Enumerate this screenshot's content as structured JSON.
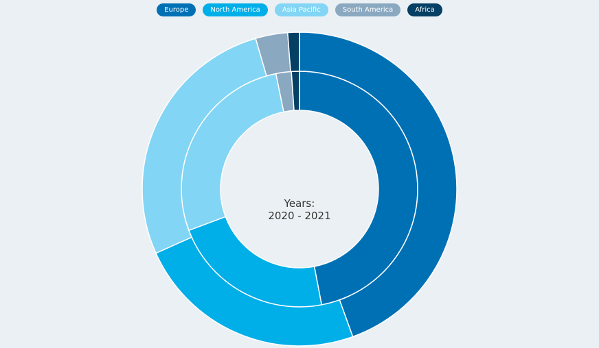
{
  "chart_data": {
    "type": "pie",
    "subtype": "nested-donut",
    "center_label": {
      "line1": "Years:",
      "line2": "2020 - 2021"
    },
    "categories": [
      "Europe",
      "North America",
      "Asia Pacific",
      "South America",
      "Africa"
    ],
    "colors": [
      "#0070b5",
      "#00aee8",
      "#82d5f4",
      "#8aa8c0",
      "#053f63"
    ],
    "series": [
      {
        "ring": "inner",
        "values": [
          47.0,
          22.3,
          27.5,
          2.1,
          1.1
        ]
      },
      {
        "ring": "outer",
        "values": [
          44.5,
          23.8,
          27.2,
          3.3,
          1.2
        ]
      }
    ],
    "legend_position": "top-center"
  }
}
